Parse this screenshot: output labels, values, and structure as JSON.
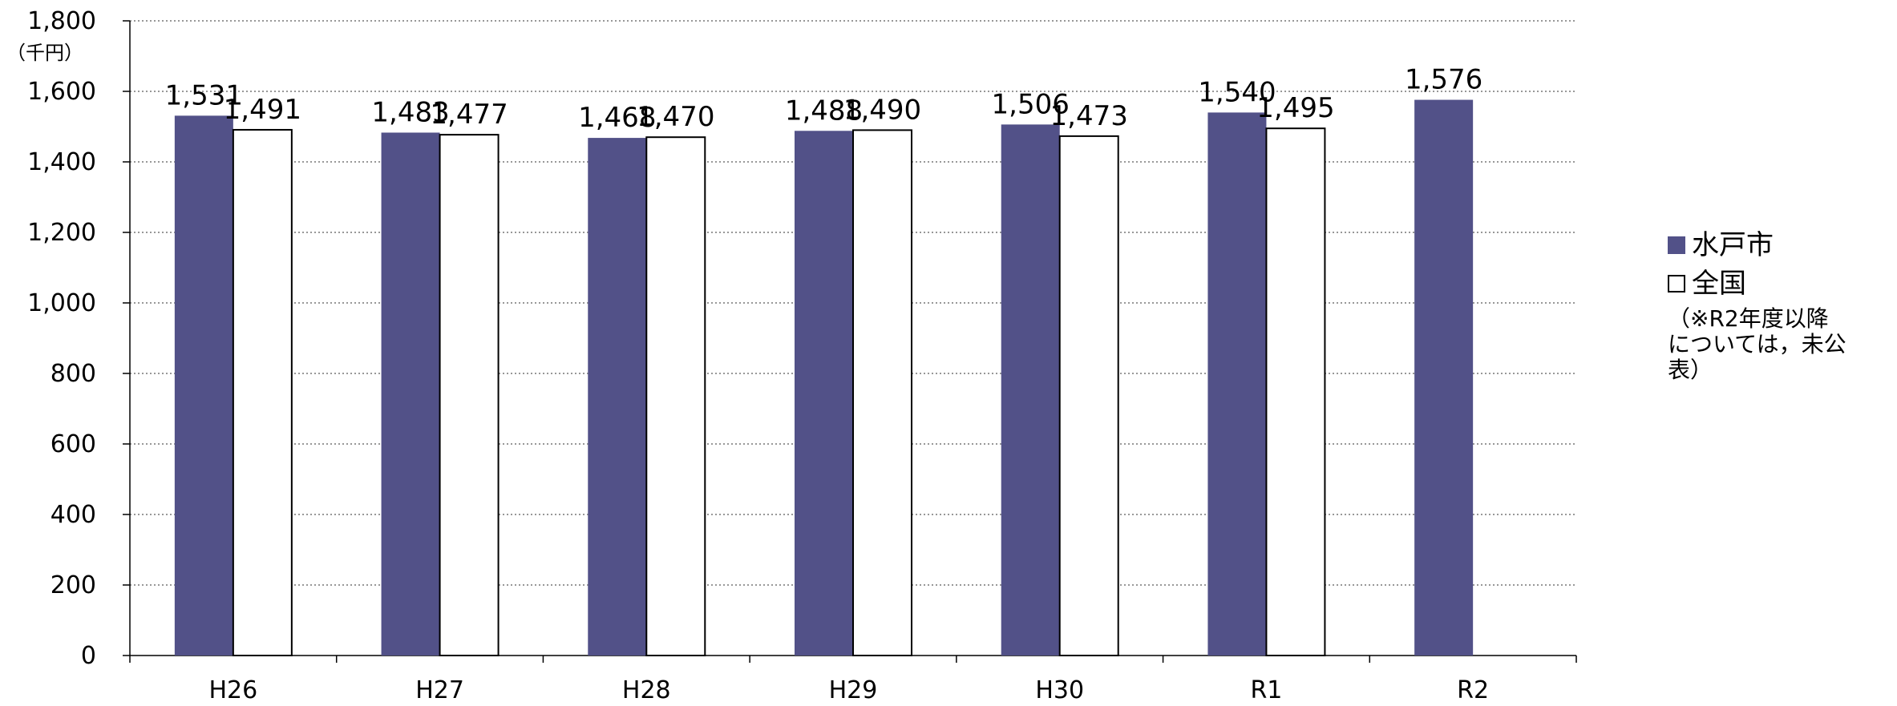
{
  "chart_data": {
    "type": "bar",
    "categories": [
      "H26",
      "H27",
      "H28",
      "H29",
      "H30",
      "R1",
      "R2"
    ],
    "series": [
      {
        "name": "水戸市",
        "values": [
          1531,
          1483,
          1468,
          1488,
          1506,
          1540,
          1576
        ],
        "color": "#525188"
      },
      {
        "name": "全国",
        "values": [
          1491,
          1477,
          1470,
          1490,
          1473,
          1495,
          null
        ],
        "color": "#ffffff"
      }
    ],
    "data_labels": {
      "水戸市": [
        "1,531",
        "1,483",
        "1,468",
        "1,488",
        "1,506",
        "1,540",
        "1,576"
      ],
      "全国": [
        "1,491",
        "1,477",
        "1,470",
        "1,490",
        "1,473",
        "1,495",
        ""
      ]
    },
    "ylabel": "（千円）",
    "ylim": [
      0,
      1800
    ],
    "yticks": [
      0,
      200,
      400,
      600,
      800,
      1000,
      1200,
      1400,
      1600,
      1800
    ],
    "ytick_labels": [
      "0",
      "200",
      "400",
      "600",
      "800",
      "1,000",
      "1,200",
      "1,400",
      "1,600",
      "1,800"
    ],
    "grid": true,
    "legend_position": "right"
  },
  "legend": {
    "items": [
      {
        "label": "水戸市",
        "color": "#525188"
      },
      {
        "label": "全国",
        "color": "#ffffff"
      }
    ],
    "note": "（※R2年度以降\nについては，未公\n表）"
  }
}
